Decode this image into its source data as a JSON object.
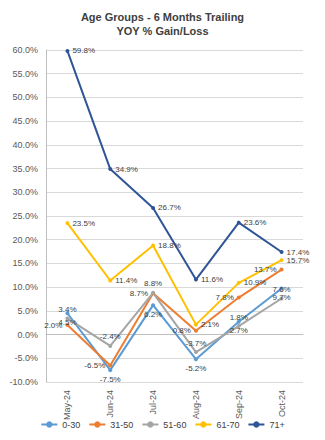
{
  "chart_data": {
    "type": "line",
    "title": "Age Groups - 6 Months Trailing",
    "subtitle": "YOY % Gain/Loss",
    "categories": [
      "May-24",
      "Jun-24",
      "Jul-24",
      "Aug-24",
      "Sep-24",
      "Oct-24"
    ],
    "series": [
      {
        "name": "0-30",
        "color": "#5b9bd5",
        "values": [
          4.5,
          -7.5,
          6.2,
          -5.2,
          2.7,
          9.7
        ],
        "value_labels": [
          "4.5%",
          "-7.5%",
          "6.2%",
          "-5.2%",
          "2.7%",
          "9.7%"
        ]
      },
      {
        "name": "31-50",
        "color": "#ed7d31",
        "values": [
          2.0,
          -6.5,
          8.7,
          0.8,
          7.8,
          13.7
        ],
        "value_labels": [
          "2.0%",
          "-6.5%",
          "8.7%",
          "0.8%",
          "7.8%",
          "13.7%"
        ]
      },
      {
        "name": "51-60",
        "color": "#a5a5a5",
        "values": [
          3.4,
          -2.4,
          8.8,
          -3.7,
          1.8,
          7.6
        ],
        "value_labels": [
          "3.4%",
          "-2.4%",
          "8.8%",
          "-3.7%",
          "1.8%",
          "7.6%"
        ]
      },
      {
        "name": "61-70",
        "color": "#ffc000",
        "values": [
          23.5,
          11.4,
          18.8,
          2.1,
          10.9,
          15.7
        ],
        "value_labels": [
          "23.5%",
          "11.4%",
          "18.8%",
          "2.1%",
          "10.9%",
          "15.7%"
        ]
      },
      {
        "name": "71+",
        "color": "#2f5597",
        "values": [
          59.8,
          34.9,
          26.7,
          11.6,
          23.6,
          17.4
        ],
        "value_labels": [
          "59.8%",
          "34.9%",
          "26.7%",
          "11.6%",
          "23.6%",
          "17.4%"
        ]
      }
    ],
    "ylim": [
      -10,
      60
    ],
    "yticks": [
      {
        "value": -10,
        "label": "-10.0%"
      },
      {
        "value": -5,
        "label": "-5.0%"
      },
      {
        "value": 0,
        "label": "0.0%"
      },
      {
        "value": 5,
        "label": "5.0%"
      },
      {
        "value": 10,
        "label": "10.0%"
      },
      {
        "value": 15,
        "label": "15.0%"
      },
      {
        "value": 20,
        "label": "20.0%"
      },
      {
        "value": 25,
        "label": "25.0%"
      },
      {
        "value": 30,
        "label": "30.0%"
      },
      {
        "value": 35,
        "label": "35.0%"
      },
      {
        "value": 40,
        "label": "40.0%"
      },
      {
        "value": 45,
        "label": "45.0%"
      },
      {
        "value": 50,
        "label": "50.0%"
      },
      {
        "value": 55,
        "label": "55.0%"
      },
      {
        "value": 60,
        "label": "60.0%"
      }
    ],
    "grid": true,
    "legend": "bottom",
    "data_labels": true,
    "marker": "circle",
    "line_style": "solid"
  }
}
